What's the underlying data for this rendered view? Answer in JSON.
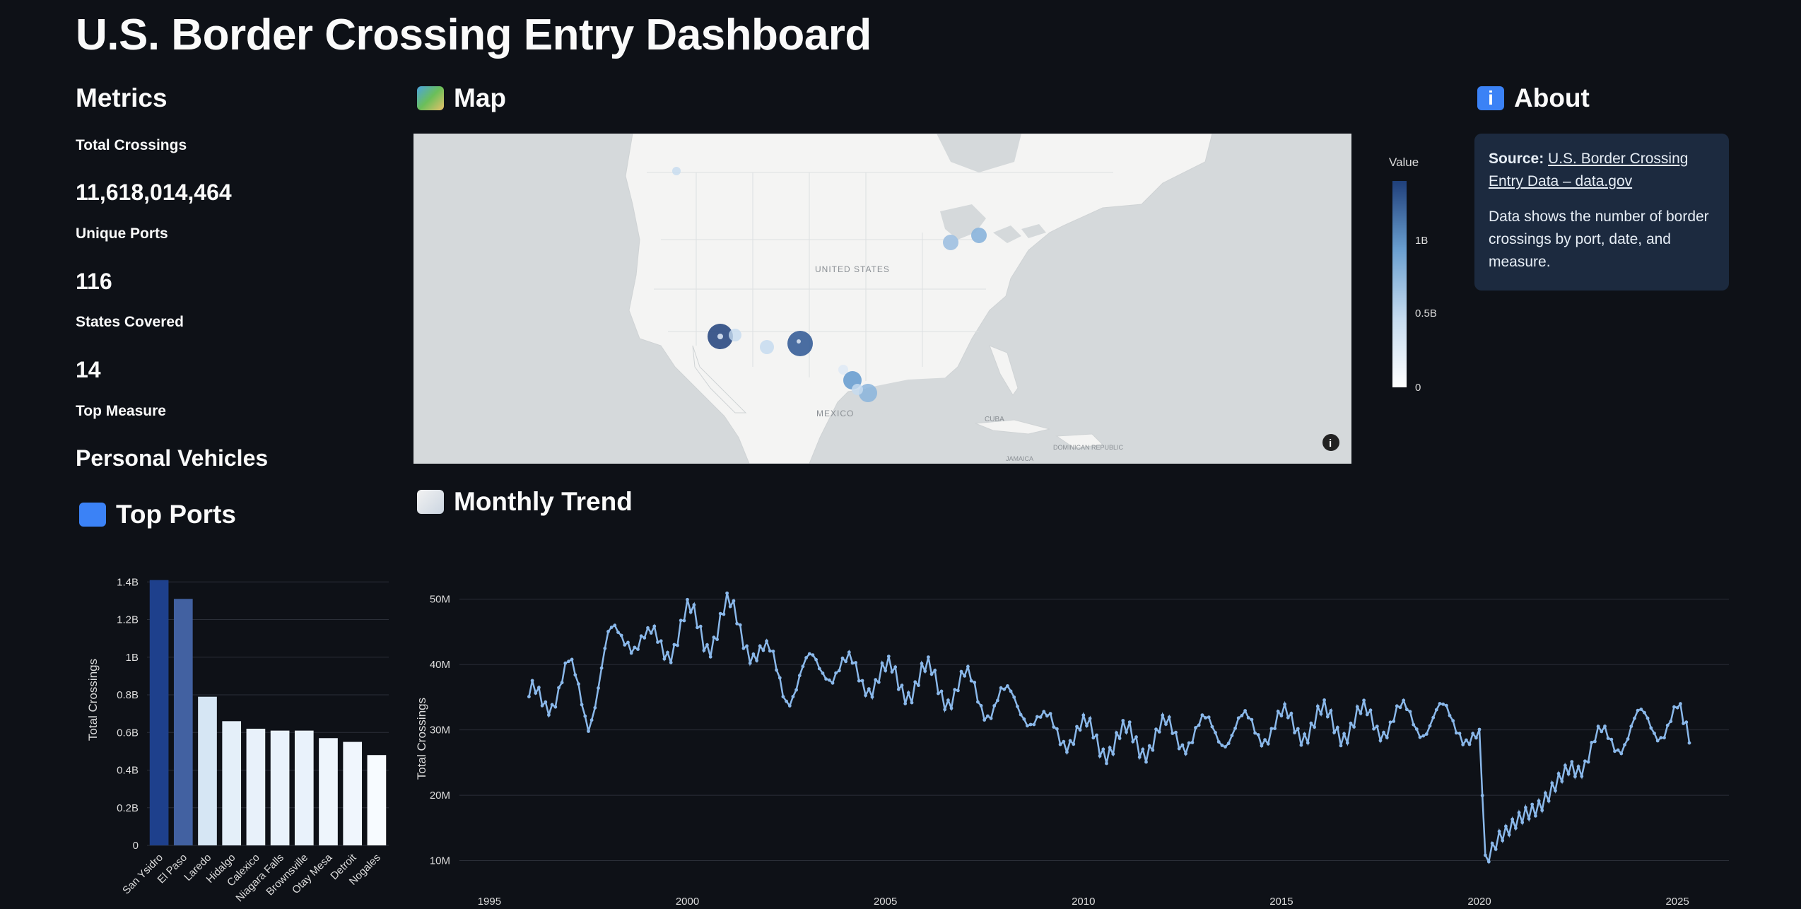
{
  "page": {
    "title": "U.S. Border Crossing Entry Dashboard"
  },
  "metrics": {
    "heading": "Metrics",
    "total_label": "Total Crossings",
    "total_value": "11,618,014,464",
    "ports_label": "Unique Ports",
    "ports_value": "116",
    "states_label": "States Covered",
    "states_value": "14",
    "measure_label": "Top Measure",
    "measure_value": "Personal Vehicles"
  },
  "map": {
    "heading": "Map",
    "heading_icon": "world-map-icon",
    "labels": {
      "us": "UNITED STATES",
      "mexico": "MEXICO",
      "cuba": "CUBA",
      "dominican": "DOMINICAN REPUBLIC",
      "jamaica": "JAMAICA"
    },
    "legend_title": "Value",
    "legend_ticks": [
      "1B",
      "0.5B",
      "0"
    ],
    "legend_colors": {
      "low": "#ffffff",
      "mid": "#6a9fd0",
      "high": "#1f3f7a"
    }
  },
  "about": {
    "heading": "About",
    "heading_icon": "info-icon",
    "source_label": "Source:",
    "source_link": "U.S. Border Crossing Entry Data – data.gov",
    "description": "Data shows the number of border crossings by port, date, and measure."
  },
  "top_ports": {
    "heading": "Top Ports",
    "heading_icon": "customs-icon",
    "chart_data": {
      "type": "bar",
      "categories": [
        "San Ysidro",
        "El Paso",
        "Laredo",
        "Hidalgo",
        "Calexico",
        "Niagara Falls",
        "Brownsville",
        "Otay Mesa",
        "Detroit",
        "Nogales"
      ],
      "values": [
        1.41,
        1.31,
        0.79,
        0.66,
        0.62,
        0.61,
        0.61,
        0.57,
        0.55,
        0.48
      ],
      "ylabel": "Total Crossings",
      "ylim": [
        0,
        1.45
      ],
      "ytick_labels": [
        "0",
        "0.2B",
        "0.4B",
        "0.6B",
        "0.8B",
        "1B",
        "1.2B",
        "1.4B"
      ],
      "grid": true
    }
  },
  "trend": {
    "heading": "Monthly Trend",
    "heading_icon": "chart-increasing-icon",
    "chart_data": {
      "type": "line",
      "ylabel": "Total Crossings",
      "xlim": [
        1994.6,
        2026.3
      ],
      "ylim": [
        8,
        53
      ],
      "xticks": [
        1995,
        2000,
        2005,
        2010,
        2015,
        2020,
        2025
      ],
      "yticks": [
        10,
        20,
        30,
        40,
        50
      ],
      "ytick_labels": [
        "10M",
        "20M",
        "30M",
        "40M",
        "50M"
      ],
      "grid": true,
      "annual_points": [
        [
          1996.0,
          33
        ],
        [
          1996.5,
          36
        ],
        [
          1997.0,
          38
        ],
        [
          1997.5,
          33
        ],
        [
          1998.0,
          42
        ],
        [
          1998.5,
          46
        ],
        [
          1999.0,
          42
        ],
        [
          1999.5,
          44
        ],
        [
          2000.0,
          46
        ],
        [
          2000.5,
          45
        ],
        [
          2001.0,
          47
        ],
        [
          2001.5,
          45
        ],
        [
          2002.0,
          40
        ],
        [
          2002.5,
          37
        ],
        [
          2003.0,
          38
        ],
        [
          2003.5,
          41
        ],
        [
          2004.0,
          38
        ],
        [
          2004.5,
          39
        ],
        [
          2005.0,
          37
        ],
        [
          2005.5,
          38
        ],
        [
          2006.0,
          37
        ],
        [
          2006.5,
          37
        ],
        [
          2007.0,
          36
        ],
        [
          2007.5,
          35
        ],
        [
          2008.0,
          34
        ],
        [
          2008.5,
          34
        ],
        [
          2009.0,
          30
        ],
        [
          2009.5,
          30
        ],
        [
          2010.0,
          29
        ],
        [
          2010.5,
          28.5
        ],
        [
          2011.0,
          28
        ],
        [
          2011.5,
          28.5
        ],
        [
          2012.0,
          29
        ],
        [
          2012.5,
          29.5
        ],
        [
          2013.0,
          29.5
        ],
        [
          2013.5,
          30
        ],
        [
          2014.0,
          30
        ],
        [
          2014.5,
          30.5
        ],
        [
          2015.0,
          30.5
        ],
        [
          2015.5,
          31
        ],
        [
          2016.0,
          31
        ],
        [
          2016.5,
          31
        ],
        [
          2017.0,
          31
        ],
        [
          2017.5,
          31.5
        ],
        [
          2018.0,
          31.5
        ],
        [
          2018.5,
          31.5
        ],
        [
          2019.0,
          31.5
        ],
        [
          2019.5,
          31.5
        ],
        [
          2020.0,
          27
        ],
        [
          2020.15,
          9.5
        ],
        [
          2020.5,
          14
        ],
        [
          2021.0,
          16
        ],
        [
          2021.5,
          18.5
        ],
        [
          2022.0,
          22
        ],
        [
          2022.5,
          26
        ],
        [
          2023.0,
          27.5
        ],
        [
          2023.5,
          29
        ],
        [
          2024.0,
          30.5
        ],
        [
          2024.5,
          31
        ],
        [
          2025.0,
          31.5
        ],
        [
          2025.3,
          28
        ]
      ],
      "line_color": "#8ab8ea"
    }
  }
}
